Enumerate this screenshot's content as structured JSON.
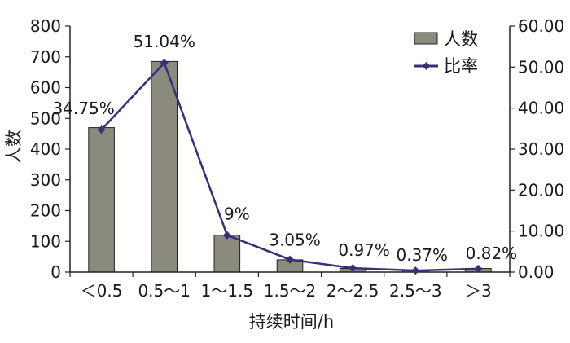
{
  "chart_data": {
    "type": "bar",
    "categories": [
      "<0.5",
      "0.5~1",
      "1~1.5",
      "1.5~2",
      "2~2.5",
      "2.5~3",
      ">3"
    ],
    "category_labels": [
      "＜0.5",
      "0.5～1",
      "1～1.5",
      "1.5～2",
      "2～2.5",
      "2.5～3",
      "＞3"
    ],
    "series": [
      {
        "name": "人数",
        "type": "bar",
        "axis": "left",
        "values": [
          470,
          685,
          120,
          40,
          12,
          5,
          12
        ],
        "color": "#8a8a7f"
      },
      {
        "name": "比率",
        "type": "line",
        "axis": "right",
        "values": [
          34.75,
          51.04,
          9,
          3.05,
          0.97,
          0.37,
          0.82
        ],
        "data_labels": [
          "34.75%",
          "51.04%",
          "9%",
          "3.05%",
          "0.97%",
          "0.37%",
          "0.82%"
        ],
        "color": "#3b2d7a"
      }
    ],
    "xlabel": "持续时间/h",
    "ylabel": "人数",
    "y2label": "",
    "ylim": [
      0,
      800
    ],
    "y_ticks": [
      "0",
      "100",
      "200",
      "300",
      "400",
      "500",
      "600",
      "700",
      "800"
    ],
    "y2lim": [
      0,
      60
    ],
    "y2_ticks": [
      "0.00",
      "10.00",
      "20.00",
      "30.00",
      "40.00",
      "50.00",
      "60.00"
    ],
    "grid": false,
    "legend_position": "top-right"
  }
}
